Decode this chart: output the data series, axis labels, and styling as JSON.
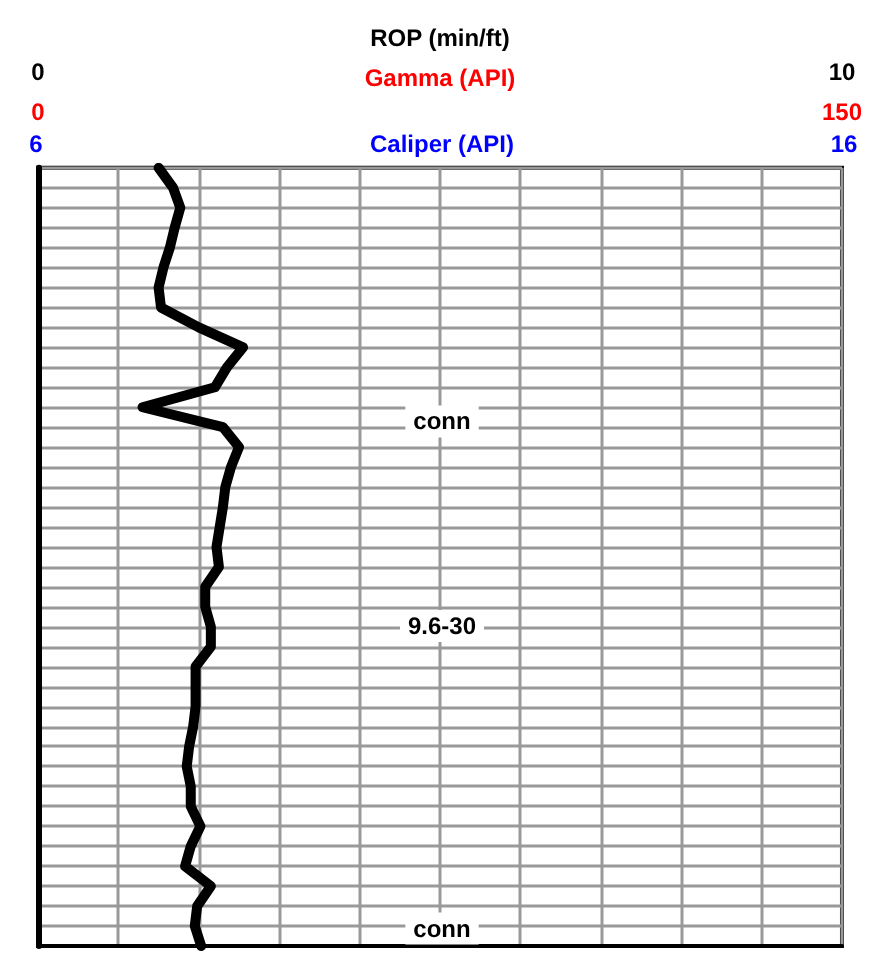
{
  "chart_data": {
    "type": "line",
    "orientation": "horizontal",
    "categories": [
      null,
      null,
      null,
      null,
      null,
      null,
      null,
      null,
      null,
      null,
      null,
      null,
      null,
      null,
      null,
      null,
      null,
      null,
      null,
      null,
      null,
      null,
      null,
      null,
      null,
      null,
      null,
      null,
      null,
      null,
      null,
      null,
      null,
      null,
      null,
      null,
      null,
      null,
      null,
      null
    ],
    "series": [
      {
        "color": "#000000",
        "values": [
          1.5,
          1.68,
          1.77,
          1.7,
          1.64,
          1.56,
          1.5,
          1.53,
          2.0,
          2.55,
          2.35,
          2.2,
          1.3,
          2.3,
          2.5,
          2.4,
          2.33,
          2.3,
          2.26,
          2.22,
          2.25,
          2.08,
          2.08,
          2.15,
          2.15,
          1.96,
          1.96,
          1.96,
          1.93,
          1.88,
          1.85,
          1.9,
          1.9,
          2.02,
          1.9,
          1.83,
          2.15,
          1.98,
          1.95,
          2.03
        ]
      }
    ],
    "xlim": [
      0,
      10
    ],
    "xticks": [
      0,
      10
    ],
    "xlabel": "ROP (min/ft)",
    "x2lim": [
      0,
      150
    ],
    "x2ticks": [
      0,
      150
    ],
    "x2label": "Gamma (API)",
    "annotations": [
      "conn",
      "9.6-30",
      "conn",
      "6",
      "Caliper (API)",
      "16"
    ],
    "grid": true,
    "marker": "none",
    "line_style": "solid"
  }
}
